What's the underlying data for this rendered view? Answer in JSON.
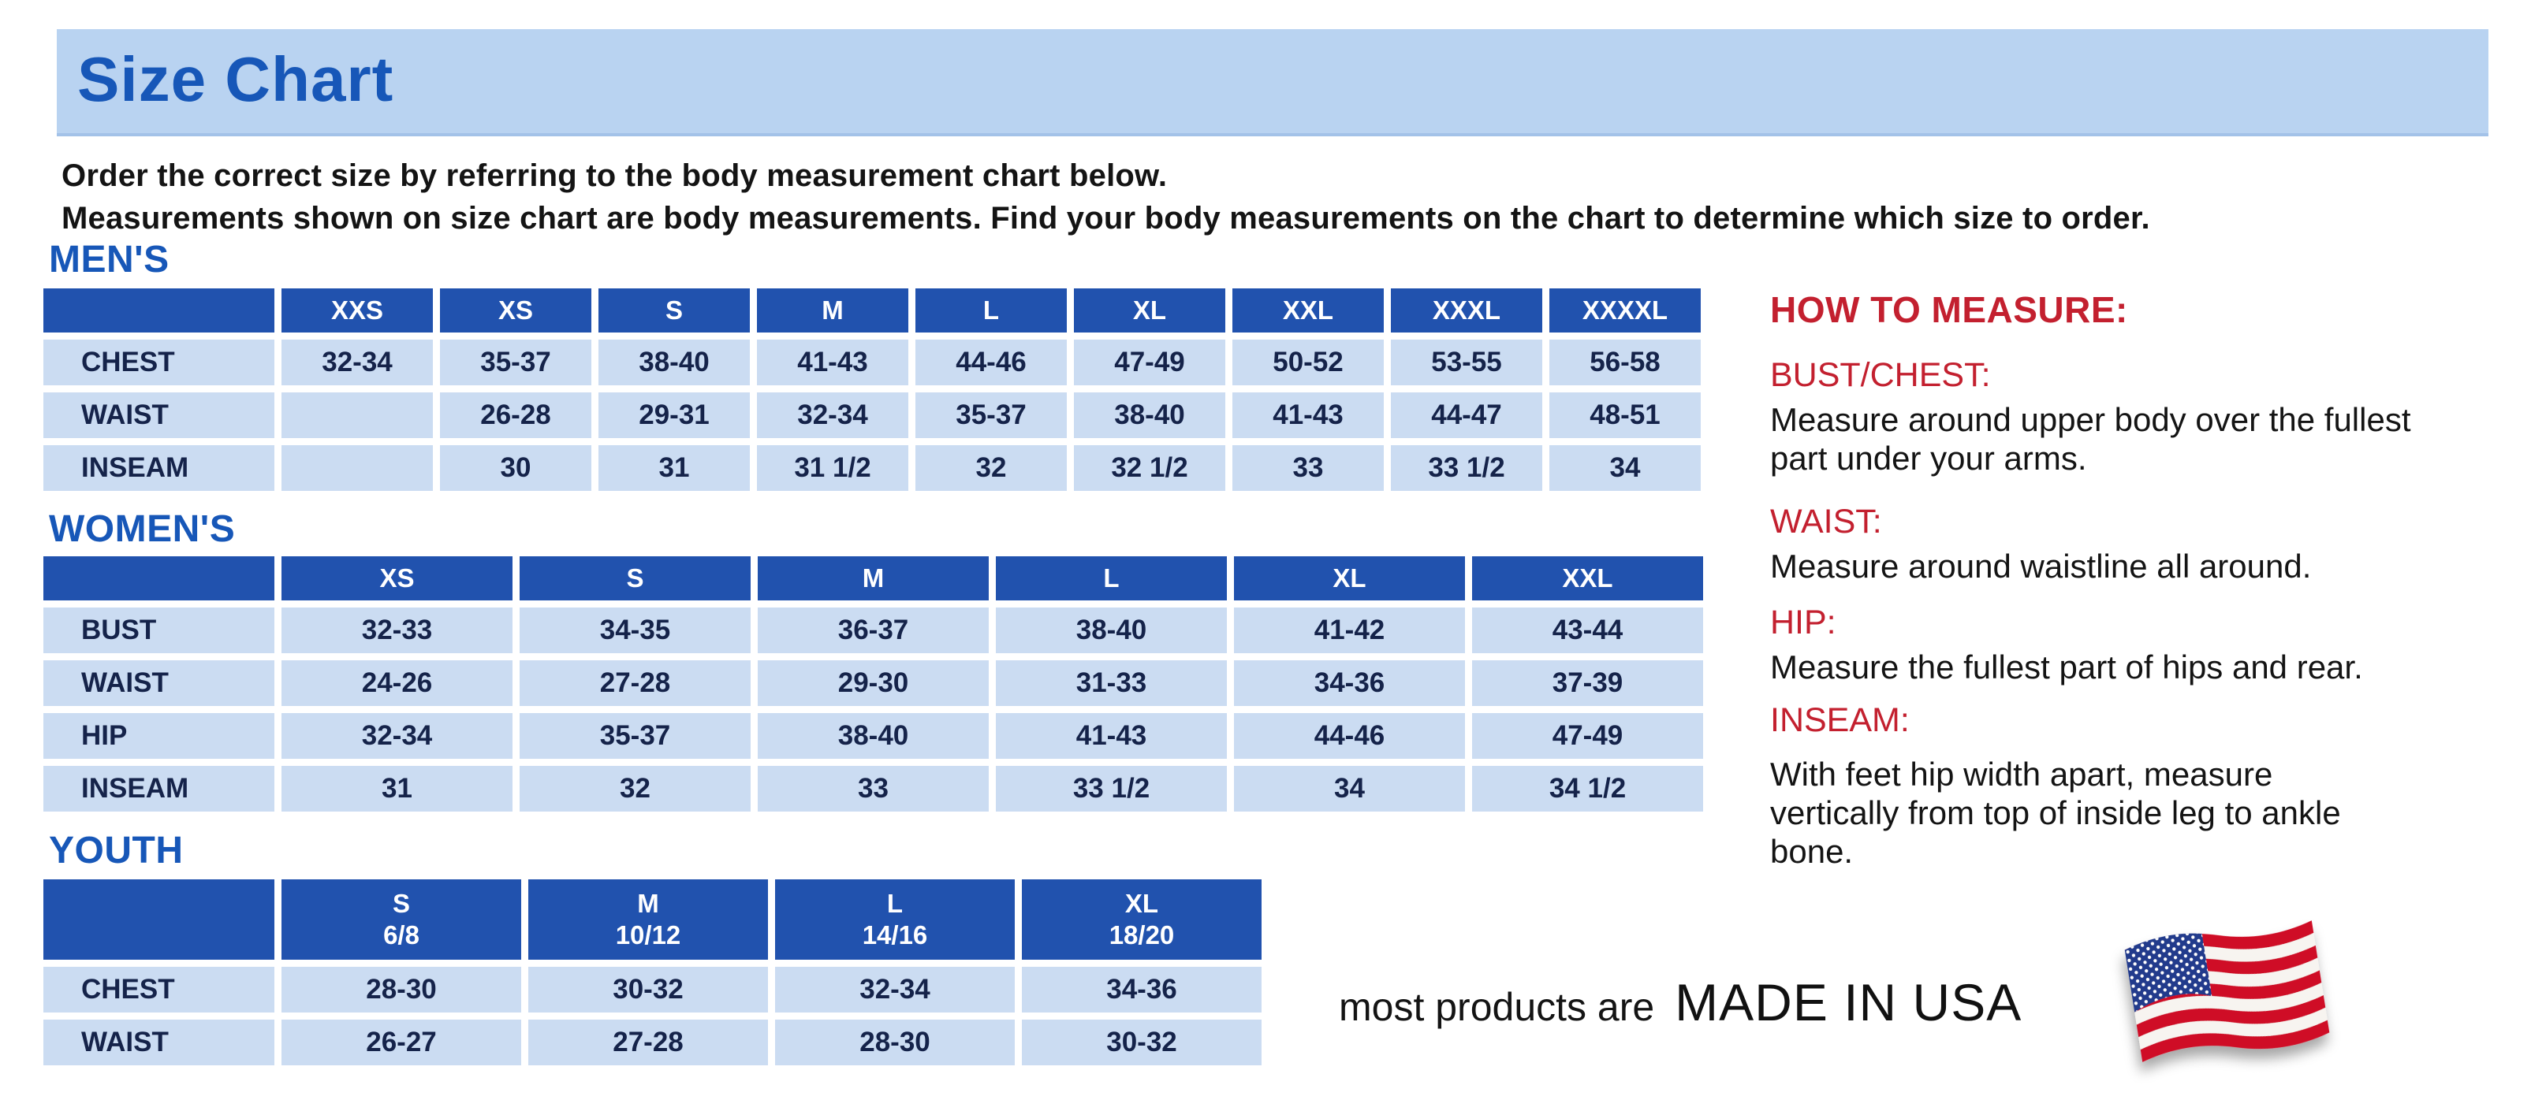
{
  "page": {
    "title": "Size Chart"
  },
  "intro": {
    "line1": "Order the correct size by referring to the body measurement chart below.",
    "line2": "Measurements shown on size chart are body measurements.  Find your body measurements on the chart to determine which size to order."
  },
  "tables": {
    "men": {
      "section_label": "MEN'S",
      "columns": [
        "",
        "XXS",
        "XS",
        "S",
        "M",
        "L",
        "XL",
        "XXL",
        "XXXL",
        "XXXXL"
      ],
      "rows": [
        {
          "label": "CHEST",
          "values": [
            "32-34",
            "35-37",
            "38-40",
            "41-43",
            "44-46",
            "47-49",
            "50-52",
            "53-55",
            "56-58"
          ]
        },
        {
          "label": "WAIST",
          "values": [
            "",
            "26-28",
            "29-31",
            "32-34",
            "35-37",
            "38-40",
            "41-43",
            "44-47",
            "48-51"
          ]
        },
        {
          "label": "INSEAM",
          "values": [
            "",
            "30",
            "31",
            "31 1/2",
            "32",
            "32 1/2",
            "33",
            "33 1/2",
            "34"
          ]
        }
      ]
    },
    "women": {
      "section_label": "WOMEN'S",
      "columns": [
        "",
        "XS",
        "S",
        "M",
        "L",
        "XL",
        "XXL"
      ],
      "rows": [
        {
          "label": "BUST",
          "values": [
            "32-33",
            "34-35",
            "36-37",
            "38-40",
            "41-42",
            "43-44"
          ]
        },
        {
          "label": "WAIST",
          "values": [
            "24-26",
            "27-28",
            "29-30",
            "31-33",
            "34-36",
            "37-39"
          ]
        },
        {
          "label": "HIP",
          "values": [
            "32-34",
            "35-37",
            "38-40",
            "41-43",
            "44-46",
            "47-49"
          ]
        },
        {
          "label": "INSEAM",
          "values": [
            "31",
            "32",
            "33",
            "33 1/2",
            "34",
            "34 1/2"
          ]
        }
      ]
    },
    "youth": {
      "section_label": "YOUTH",
      "columns": [
        "",
        "S\n6/8",
        "M\n10/12",
        "L\n14/16",
        "XL\n18/20"
      ],
      "rows": [
        {
          "label": "CHEST",
          "values": [
            "28-30",
            "30-32",
            "32-34",
            "34-36"
          ]
        },
        {
          "label": "WAIST",
          "values": [
            "26-27",
            "27-28",
            "28-30",
            "30-32"
          ]
        }
      ]
    }
  },
  "how_to_measure": {
    "heading": "HOW TO MEASURE:",
    "sections": [
      {
        "label": "BUST/CHEST:",
        "text": "Measure around upper body over the fullest part under your arms."
      },
      {
        "label": "WAIST:",
        "text": "Measure around waistline all around."
      },
      {
        "label": "HIP:",
        "text": "Measure the fullest part of hips and rear."
      },
      {
        "label": "INSEAM:",
        "text": "With feet hip width apart, measure vertically from top of inside leg to ankle bone."
      }
    ]
  },
  "footer": {
    "prefix": "most products are",
    "highlight": "MADE IN USA",
    "flag_icon": "us-flag-icon"
  },
  "colors": {
    "title_band_bg": "#b9d3f1",
    "heading_blue": "#1757b8",
    "table_header_bg": "#2152ae",
    "table_cell_bg": "#cbdcf2",
    "table_text": "#15234a",
    "accent_red": "#c3202f",
    "flag_red": "#cf1126",
    "flag_navy": "#243b8c"
  }
}
